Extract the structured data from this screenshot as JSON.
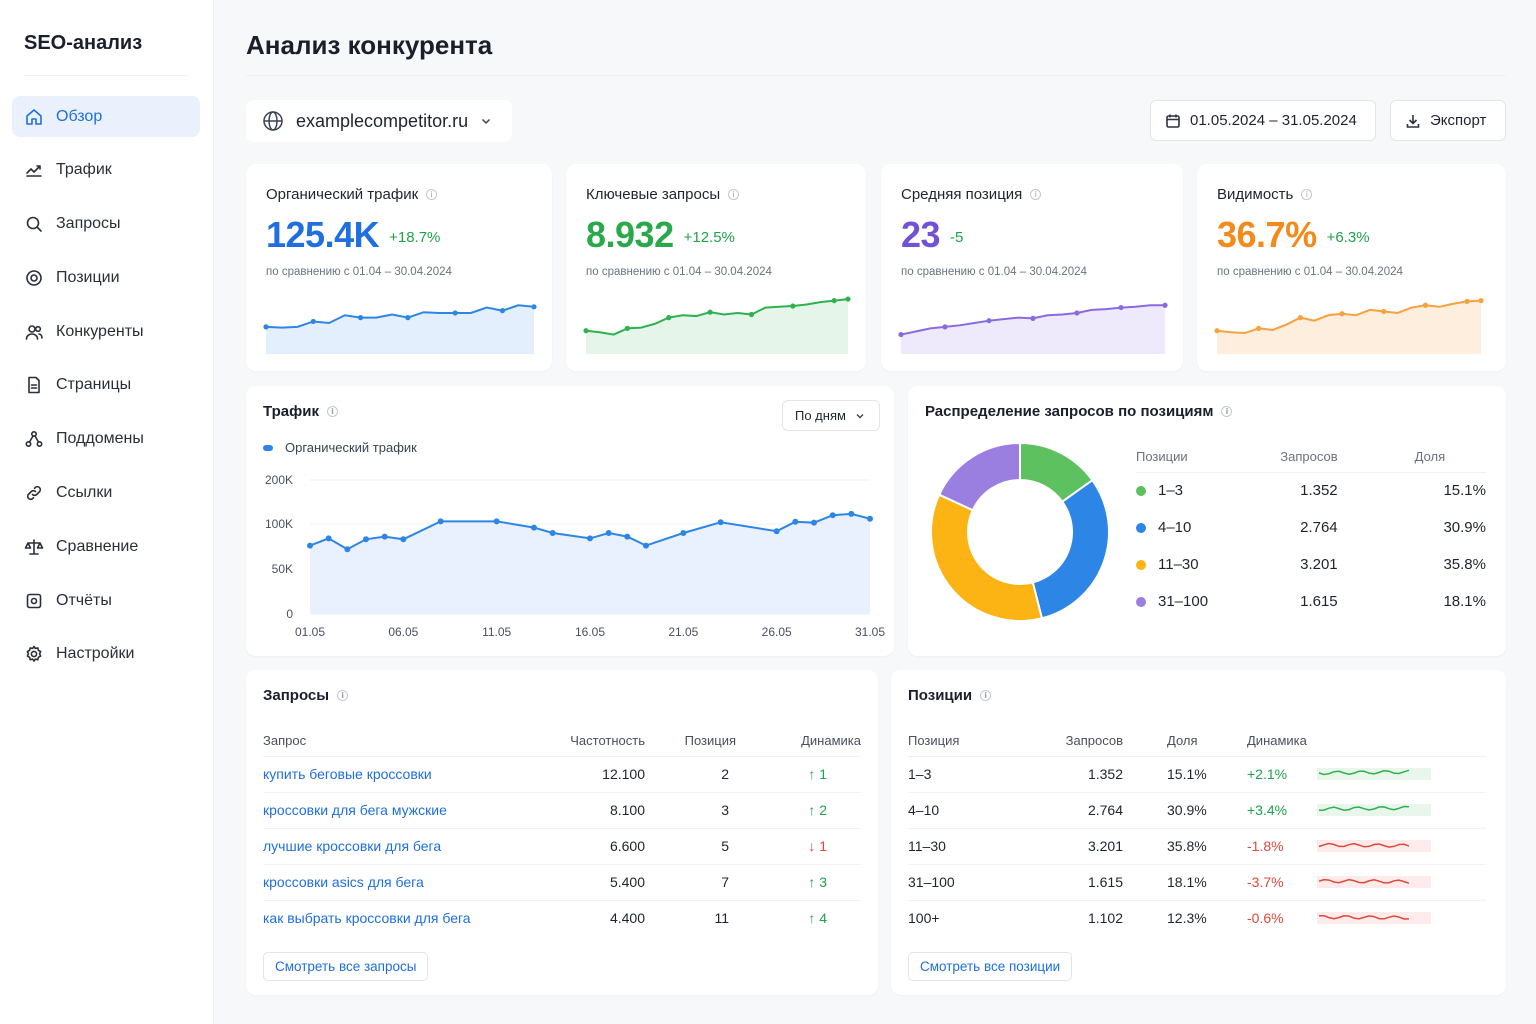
{
  "app": {
    "title": "SEO-анализ"
  },
  "sidebar": {
    "items": [
      {
        "label": "Обзор",
        "icon": "home-icon",
        "active": true
      },
      {
        "label": "Трафик",
        "icon": "trend-icon"
      },
      {
        "label": "Запросы",
        "icon": "search-icon"
      },
      {
        "label": "Позиции",
        "icon": "target-icon"
      },
      {
        "label": "Конкуренты",
        "icon": "users-icon"
      },
      {
        "label": "Страницы",
        "icon": "page-icon"
      },
      {
        "label": "Поддомены",
        "icon": "network-icon"
      },
      {
        "label": "Ссылки",
        "icon": "link-icon"
      },
      {
        "label": "Сравнение",
        "icon": "scales-icon"
      },
      {
        "label": "Отчёты",
        "icon": "report-icon"
      },
      {
        "label": "Настройки",
        "icon": "gear-icon"
      }
    ]
  },
  "page": {
    "title": "Анализ конкурента"
  },
  "toolbar": {
    "domain": "examplecompetitor.ru",
    "date_range": "01.05.2024 – 31.05.2024",
    "export_label": "Экспорт"
  },
  "kpis": [
    {
      "label": "Органический трафик",
      "value": "125.4K",
      "delta": "+18.7%",
      "sub": "по сравнению с 01.04 – 30.04.2024",
      "color": "#1f6fe0",
      "delta_color": "#1ea34a",
      "spark": [
        30,
        29,
        30,
        37,
        35,
        45,
        42,
        42,
        46,
        42,
        49,
        48,
        48,
        48,
        55,
        51,
        58,
        56
      ],
      "spark_color": "#2d86e6",
      "spark_fill": "#e3effd"
    },
    {
      "label": "Ключевые запросы",
      "value": "8.932",
      "delta": "+12.5%",
      "sub": "по сравнению с 01.04 – 30.04.2024",
      "color": "#2aa84b",
      "delta_color": "#1ea34a",
      "spark": [
        25,
        23,
        20,
        28,
        29,
        34,
        42,
        45,
        44,
        49,
        46,
        48,
        46,
        55,
        56,
        57,
        59,
        62,
        64,
        66
      ],
      "spark_color": "#2fb14f",
      "spark_fill": "#e6f5e9"
    },
    {
      "label": "Средняя позиция",
      "value": "23",
      "delta": "-5",
      "sub": "по сравнению с 01.04 – 30.04.2024",
      "color": "#7152d6",
      "delta_color": "#1ea34a",
      "spark": [
        20,
        24,
        28,
        30,
        32,
        35,
        38,
        40,
        42,
        41,
        45,
        46,
        48,
        52,
        53,
        55,
        56,
        58,
        58
      ],
      "spark_color": "#8a6ae3",
      "spark_fill": "#efeafb"
    },
    {
      "label": "Видимость",
      "value": "36.7%",
      "delta": "+6.3%",
      "sub": "по сравнению с 01.04 – 30.04.2024",
      "color": "#f28a1c",
      "delta_color": "#1ea34a",
      "spark": [
        25,
        23,
        22,
        28,
        26,
        33,
        42,
        38,
        45,
        47,
        45,
        52,
        50,
        48,
        55,
        58,
        56,
        60,
        63,
        64
      ],
      "spark_color": "#f6a23e",
      "spark_fill": "#fdeedd"
    }
  ],
  "traffic": {
    "title": "Трафик",
    "period_select": "По дням",
    "legend": "Органический трафик",
    "ylabels": [
      "200K",
      "100K",
      "50K",
      "0"
    ],
    "xlabels": [
      "01.05",
      "06.05",
      "11.05",
      "16.05",
      "21.05",
      "26.05",
      "31.05"
    ]
  },
  "distribution": {
    "title": "Распределение запросов по позициям",
    "headers": [
      "Позиции",
      "Запросов",
      "Доля"
    ],
    "rows": [
      {
        "label": "1–3",
        "count": "1.352",
        "share": "15.1%",
        "color": "#5cc15e"
      },
      {
        "label": "4–10",
        "count": "2.764",
        "share": "30.9%",
        "color": "#2d86e6"
      },
      {
        "label": "11–30",
        "count": "3.201",
        "share": "35.8%",
        "color": "#fbb414"
      },
      {
        "label": "31–100",
        "count": "1.615",
        "share": "18.1%",
        "color": "#9b7fe0"
      }
    ]
  },
  "queries": {
    "title": "Запросы",
    "headers": [
      "Запрос",
      "Частотность",
      "Позиция",
      "Динамика"
    ],
    "rows": [
      {
        "query": "купить беговые кроссовки",
        "freq": "12.100",
        "pos": "2",
        "dyn": "↑ 1",
        "dir": "up"
      },
      {
        "query": "кроссовки для бега мужские",
        "freq": "8.100",
        "pos": "3",
        "dyn": "↑ 2",
        "dir": "up"
      },
      {
        "query": "лучшие кроссовки для бега",
        "freq": "6.600",
        "pos": "5",
        "dyn": "↓ 1",
        "dir": "down"
      },
      {
        "query": "кроссовки asics для бега",
        "freq": "5.400",
        "pos": "7",
        "dyn": "↑ 3",
        "dir": "up"
      },
      {
        "query": "как выбрать кроссовки для бега",
        "freq": "4.400",
        "pos": "11",
        "dyn": "↑ 4",
        "dir": "up"
      }
    ],
    "more_label": "Смотреть все запросы"
  },
  "positions": {
    "title": "Позиции",
    "headers": [
      "Позиция",
      "Запросов",
      "Доля",
      "Динамика"
    ],
    "rows": [
      {
        "label": "1–3",
        "count": "1.352",
        "share": "15.1%",
        "dyn": "+2.1%",
        "dir": "up"
      },
      {
        "label": "4–10",
        "count": "2.764",
        "share": "30.9%",
        "dyn": "+3.4%",
        "dir": "up"
      },
      {
        "label": "11–30",
        "count": "3.201",
        "share": "35.8%",
        "dyn": "-1.8%",
        "dir": "down"
      },
      {
        "label": "31–100",
        "count": "1.615",
        "share": "18.1%",
        "dyn": "-3.7%",
        "dir": "down"
      },
      {
        "label": "100+",
        "count": "1.102",
        "share": "12.3%",
        "dyn": "-0.6%",
        "dir": "down"
      }
    ],
    "more_label": "Смотреть все позиции"
  },
  "chart_data": [
    {
      "type": "area",
      "title": "Трафик",
      "series": [
        {
          "name": "Органический трафик",
          "x": [
            "01.05",
            "02.05",
            "03.05",
            "04.05",
            "05.05",
            "06.05",
            "08.05",
            "11.05",
            "13.05",
            "14.05",
            "16.05",
            "17.05",
            "18.05",
            "19.05",
            "21.05",
            "23.05",
            "26.05",
            "27.05",
            "28.05",
            "29.05",
            "30.05",
            "31.05"
          ],
          "values": [
            76000,
            84000,
            72000,
            83000,
            86000,
            83000,
            106000,
            106000,
            96000,
            90000,
            84000,
            90000,
            86000,
            76000,
            90000,
            104000,
            92000,
            105000,
            103000,
            120000,
            123000,
            112000
          ]
        }
      ],
      "ylim": [
        0,
        200000
      ],
      "yticks": [
        "0",
        "50K",
        "100K",
        "200K"
      ],
      "xticks": [
        "01.05",
        "06.05",
        "11.05",
        "16.05",
        "21.05",
        "26.05",
        "31.05"
      ]
    },
    {
      "type": "pie",
      "title": "Распределение запросов по позициям",
      "categories": [
        "1–3",
        "4–10",
        "11–30",
        "31–100"
      ],
      "values": [
        15.1,
        30.9,
        35.8,
        18.1
      ]
    }
  ]
}
